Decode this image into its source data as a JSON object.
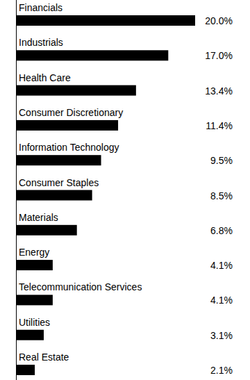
{
  "chart_data": {
    "type": "bar",
    "orientation": "horizontal",
    "categories": [
      "Financials",
      "Industrials",
      "Health Care",
      "Consumer Discretionary",
      "Information Technology",
      "Consumer Staples",
      "Materials",
      "Energy",
      "Telecommunication Services",
      "Utilities",
      "Real Estate"
    ],
    "values": [
      20.0,
      17.0,
      13.4,
      11.4,
      9.5,
      8.5,
      6.8,
      4.1,
      4.1,
      3.1,
      2.1
    ],
    "value_labels": [
      "20.0%",
      "17.0%",
      "13.4%",
      "11.4%",
      "9.5%",
      "8.5%",
      "6.8%",
      "4.1%",
      "4.1%",
      "3.1%",
      "2.1%"
    ],
    "color": "#000000",
    "xlim": [
      0,
      20
    ],
    "data_labels": true,
    "tick_labels": false
  }
}
